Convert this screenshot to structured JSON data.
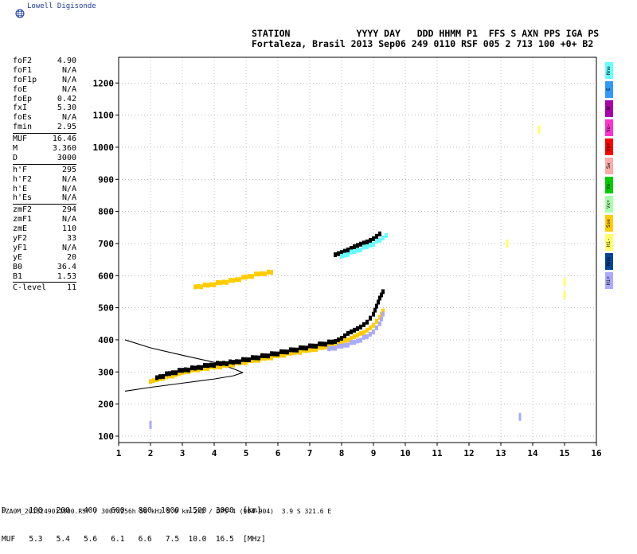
{
  "logo": {
    "text": "Lowell Digisonde",
    "icon": "globe-icon"
  },
  "header": {
    "line1": "STATION            YYYY DAY   DDD HHMM P1  FFS S AXN PPS IGA PS",
    "line2": "Fortaleza, Brasil 2013 Sep06 249 0110 RSF 005 2 713 100 +0+ B2"
  },
  "params": {
    "group1": [
      {
        "name": "foF2",
        "value": "4.90"
      },
      {
        "name": "foF1",
        "value": "N/A"
      },
      {
        "name": "foF1p",
        "value": "N/A"
      },
      {
        "name": "foE",
        "value": "N/A"
      },
      {
        "name": "foEp",
        "value": "0.42"
      },
      {
        "name": "fxI",
        "value": "5.30"
      },
      {
        "name": "foEs",
        "value": "N/A"
      },
      {
        "name": "fmin",
        "value": "2.95"
      }
    ],
    "group2": [
      {
        "name": "MUF",
        "value": "16.46"
      },
      {
        "name": "M",
        "value": "3.360"
      },
      {
        "name": "D",
        "value": "3000"
      }
    ],
    "group3": [
      {
        "name": "h'F",
        "value": "295"
      },
      {
        "name": "h'F2",
        "value": "N/A"
      },
      {
        "name": "h'E",
        "value": "N/A"
      },
      {
        "name": "h'Es",
        "value": "N/A"
      }
    ],
    "group4": [
      {
        "name": "zmF2",
        "value": "294"
      },
      {
        "name": "zmF1",
        "value": "N/A"
      },
      {
        "name": "zmE",
        "value": "110"
      },
      {
        "name": "yF2",
        "value": "33"
      },
      {
        "name": "yF1",
        "value": "N/A"
      },
      {
        "name": "yE",
        "value": "20"
      },
      {
        "name": "B0",
        "value": "36.4"
      },
      {
        "name": "B1",
        "value": "1.53"
      }
    ],
    "group5": [
      {
        "name": "C-level",
        "value": "11"
      }
    ]
  },
  "legend": [
    {
      "label": "Nne",
      "color": "#66ffff"
    },
    {
      "label": "E",
      "color": "#3399ff"
    },
    {
      "label": "W",
      "color": "#aa00aa"
    },
    {
      "label": "Vo-",
      "color": "#ff33cc"
    },
    {
      "label": "Vo+",
      "color": "#ff0000"
    },
    {
      "label": "Sw",
      "color": "#ffaaaa"
    },
    {
      "label": "Vx-",
      "color": "#00cc00"
    },
    {
      "label": "Vx+",
      "color": "#aaffaa"
    },
    {
      "label": "Sse",
      "color": "#ffcc00"
    },
    {
      "label": "Hi-",
      "color": "#ffff66"
    },
    {
      "label": "Nno",
      "color": "#004499"
    },
    {
      "label": "Hi+",
      "color": "#aaaaff"
    }
  ],
  "dmuf": {
    "line1": "D     100   200   400   600   800  1000  1500  3000  [km]",
    "line2": "MUF   5.3   5.4   5.6   6.1   6.6   7.5  10.0  16.5  [MHz]"
  },
  "footer": "FZA0M_2013249011000.RSF / 300fx256h 50 kHz 5.0 km 2x2 / DPS-4 (904-904)  3.9 S 321.6 E",
  "chart_data": {
    "type": "scatter",
    "xlim": [
      1,
      16
    ],
    "ylim": [
      80,
      1280
    ],
    "x_ticks": [
      1,
      2,
      3,
      4,
      5,
      6,
      7,
      8,
      9,
      10,
      11,
      12,
      13,
      14,
      15,
      16
    ],
    "y_ticks": [
      100,
      200,
      300,
      400,
      500,
      600,
      700,
      800,
      900,
      1000,
      1100,
      1200
    ],
    "grid": true,
    "profile_curve": {
      "upper": [
        [
          1.2,
          400
        ],
        [
          2,
          375
        ],
        [
          3,
          352
        ],
        [
          4,
          330
        ],
        [
          4.6,
          310
        ],
        [
          4.9,
          298
        ]
      ],
      "lower": [
        [
          1.2,
          240
        ],
        [
          2,
          252
        ],
        [
          3,
          265
        ],
        [
          4,
          278
        ],
        [
          4.6,
          288
        ],
        [
          4.9,
          298
        ]
      ]
    },
    "traces": [
      {
        "name": "F2 O-trace",
        "color": "#ffcc00",
        "points": [
          [
            2.0,
            270
          ],
          [
            2.2,
            276
          ],
          [
            2.5,
            285
          ],
          [
            2.8,
            292
          ],
          [
            3.0,
            298
          ],
          [
            3.3,
            305
          ],
          [
            3.6,
            310
          ],
          [
            4.0,
            315
          ],
          [
            4.4,
            320
          ],
          [
            4.8,
            328
          ],
          [
            5.2,
            335
          ],
          [
            5.6,
            342
          ],
          [
            6.0,
            350
          ],
          [
            6.5,
            360
          ],
          [
            7.0,
            368
          ],
          [
            7.5,
            378
          ],
          [
            7.8,
            385
          ],
          [
            8.0,
            395
          ],
          [
            8.3,
            405
          ],
          [
            8.5,
            415
          ],
          [
            8.8,
            430
          ],
          [
            9.0,
            445
          ],
          [
            9.2,
            470
          ],
          [
            9.3,
            490
          ]
        ]
      },
      {
        "name": "F2 X-trace",
        "color": "#000000",
        "points": [
          [
            2.2,
            282
          ],
          [
            2.6,
            295
          ],
          [
            3.0,
            305
          ],
          [
            3.4,
            312
          ],
          [
            3.8,
            320
          ],
          [
            4.2,
            326
          ],
          [
            4.6,
            330
          ],
          [
            7.8,
            395
          ],
          [
            8.0,
            405
          ],
          [
            8.2,
            420
          ],
          [
            8.4,
            430
          ],
          [
            8.6,
            440
          ],
          [
            8.8,
            455
          ],
          [
            9.0,
            480
          ],
          [
            9.1,
            505
          ],
          [
            9.2,
            530
          ],
          [
            9.3,
            550
          ]
        ]
      },
      {
        "name": "F2 Hi+",
        "color": "#aaaaff",
        "points": [
          [
            7.6,
            372
          ],
          [
            8.0,
            380
          ],
          [
            8.4,
            392
          ],
          [
            8.8,
            410
          ],
          [
            9.0,
            425
          ],
          [
            9.2,
            450
          ],
          [
            9.3,
            480
          ]
        ]
      },
      {
        "name": "2F echo",
        "color": "#ffcc00",
        "points": [
          [
            3.4,
            565
          ],
          [
            3.8,
            570
          ],
          [
            4.2,
            578
          ],
          [
            4.6,
            585
          ],
          [
            5.0,
            595
          ],
          [
            5.4,
            605
          ],
          [
            5.8,
            610
          ]
        ]
      },
      {
        "name": "2F late",
        "color": "#000000",
        "points": [
          [
            7.8,
            665
          ],
          [
            8.0,
            672
          ],
          [
            8.2,
            680
          ],
          [
            8.4,
            690
          ],
          [
            8.6,
            698
          ],
          [
            8.8,
            705
          ],
          [
            9.0,
            715
          ],
          [
            9.2,
            730
          ]
        ]
      },
      {
        "name": "2F late cyan",
        "color": "#66ffff",
        "points": [
          [
            8.0,
            660
          ],
          [
            8.4,
            675
          ],
          [
            8.8,
            690
          ],
          [
            9.2,
            710
          ],
          [
            9.4,
            725
          ]
        ]
      },
      {
        "name": "Noise",
        "color": "#ffff66",
        "points": [
          [
            13.2,
            700
          ],
          [
            14.2,
            1055
          ],
          [
            15.0,
            580
          ],
          [
            15.0,
            540
          ]
        ]
      },
      {
        "name": "Noise Hi+",
        "color": "#aaaaff",
        "points": [
          [
            13.6,
            160
          ],
          [
            2.0,
            135
          ]
        ]
      }
    ]
  }
}
